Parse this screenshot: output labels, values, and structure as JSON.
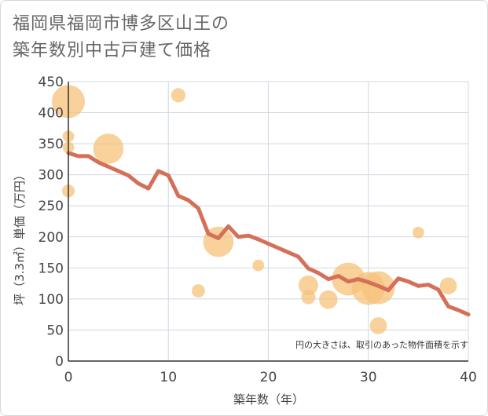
{
  "title_line1": "福岡県福岡市博多区山王の",
  "title_line2": "築年数別中古戸建て価格",
  "chart_data": {
    "type": "scatter+line",
    "xlabel": "築年数（年）",
    "ylabel": "坪（3.3㎡）単価（万円）",
    "xlim": [
      0,
      40
    ],
    "ylim": [
      0,
      450
    ],
    "xticks": [
      0,
      10,
      20,
      30,
      40
    ],
    "yticks": [
      0,
      50,
      100,
      150,
      200,
      250,
      300,
      350,
      400,
      450
    ],
    "grid": true,
    "note": "円の大きさは、取引のあった物件面積を示す",
    "colors": {
      "bubble": "#f5c17a",
      "line": "#d4705a",
      "grid": "#cfd8e3",
      "axis": "#333333"
    },
    "bubbles": [
      {
        "x": 0,
        "y": 418,
        "size": 5
      },
      {
        "x": 0,
        "y": 362,
        "size": 1
      },
      {
        "x": 0,
        "y": 344,
        "size": 1
      },
      {
        "x": 0,
        "y": 274,
        "size": 1.2
      },
      {
        "x": 4,
        "y": 342,
        "size": 4.5
      },
      {
        "x": 11,
        "y": 428,
        "size": 1.5
      },
      {
        "x": 13,
        "y": 113,
        "size": 1.3
      },
      {
        "x": 15,
        "y": 192,
        "size": 4.5
      },
      {
        "x": 19,
        "y": 154,
        "size": 1
      },
      {
        "x": 24,
        "y": 122,
        "size": 2.5
      },
      {
        "x": 24,
        "y": 103,
        "size": 1.5
      },
      {
        "x": 26,
        "y": 99,
        "size": 2.3
      },
      {
        "x": 28,
        "y": 132,
        "size": 5
      },
      {
        "x": 30,
        "y": 117,
        "size": 5
      },
      {
        "x": 31,
        "y": 118,
        "size": 5
      },
      {
        "x": 31,
        "y": 57,
        "size": 2
      },
      {
        "x": 35,
        "y": 207,
        "size": 1
      },
      {
        "x": 38,
        "y": 121,
        "size": 2
      }
    ],
    "line": {
      "x": [
        0,
        1,
        2,
        3,
        4,
        5,
        6,
        7,
        8,
        9,
        10,
        11,
        12,
        13,
        14,
        15,
        16,
        17,
        18,
        19,
        20,
        21,
        22,
        23,
        24,
        25,
        26,
        27,
        28,
        29,
        30,
        31,
        32,
        33,
        34,
        35,
        36,
        37,
        38,
        39,
        40
      ],
      "y": [
        335,
        330,
        330,
        320,
        313,
        306,
        299,
        286,
        278,
        306,
        299,
        266,
        259,
        246,
        205,
        198,
        217,
        200,
        202,
        196,
        189,
        182,
        175,
        168,
        149,
        142,
        132,
        137,
        128,
        132,
        127,
        121,
        114,
        133,
        128,
        121,
        123,
        115,
        88,
        82,
        75
      ]
    }
  }
}
